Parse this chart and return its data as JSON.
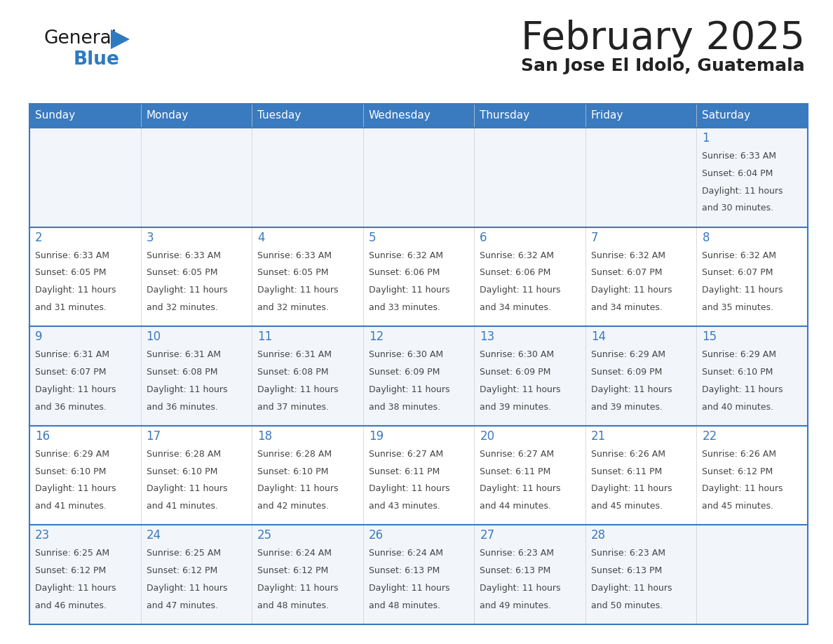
{
  "title": "February 2025",
  "subtitle": "San Jose El Idolo, Guatemala",
  "days_of_week": [
    "Sunday",
    "Monday",
    "Tuesday",
    "Wednesday",
    "Thursday",
    "Friday",
    "Saturday"
  ],
  "header_bg_color": "#3a7abf",
  "header_text_color": "#ffffff",
  "cell_bg_even": "#f2f6fb",
  "cell_bg_odd": "#ffffff",
  "day_num_color": "#3a7abf",
  "info_text_color": "#444444",
  "border_color": "#3a7abf",
  "title_color": "#222222",
  "subtitle_color": "#222222",
  "logo_general_color": "#1a1a1a",
  "logo_blue_color": "#2e7abf",
  "logo_triangle_color": "#2e7abf",
  "calendar": [
    [
      null,
      null,
      null,
      null,
      null,
      null,
      1
    ],
    [
      2,
      3,
      4,
      5,
      6,
      7,
      8
    ],
    [
      9,
      10,
      11,
      12,
      13,
      14,
      15
    ],
    [
      16,
      17,
      18,
      19,
      20,
      21,
      22
    ],
    [
      23,
      24,
      25,
      26,
      27,
      28,
      null
    ]
  ],
  "day_data": {
    "1": {
      "sunrise": "6:33 AM",
      "sunset": "6:04 PM",
      "daylight": "11 hours and 30 minutes"
    },
    "2": {
      "sunrise": "6:33 AM",
      "sunset": "6:05 PM",
      "daylight": "11 hours and 31 minutes"
    },
    "3": {
      "sunrise": "6:33 AM",
      "sunset": "6:05 PM",
      "daylight": "11 hours and 32 minutes"
    },
    "4": {
      "sunrise": "6:33 AM",
      "sunset": "6:05 PM",
      "daylight": "11 hours and 32 minutes"
    },
    "5": {
      "sunrise": "6:32 AM",
      "sunset": "6:06 PM",
      "daylight": "11 hours and 33 minutes"
    },
    "6": {
      "sunrise": "6:32 AM",
      "sunset": "6:06 PM",
      "daylight": "11 hours and 34 minutes"
    },
    "7": {
      "sunrise": "6:32 AM",
      "sunset": "6:07 PM",
      "daylight": "11 hours and 34 minutes"
    },
    "8": {
      "sunrise": "6:32 AM",
      "sunset": "6:07 PM",
      "daylight": "11 hours and 35 minutes"
    },
    "9": {
      "sunrise": "6:31 AM",
      "sunset": "6:07 PM",
      "daylight": "11 hours and 36 minutes"
    },
    "10": {
      "sunrise": "6:31 AM",
      "sunset": "6:08 PM",
      "daylight": "11 hours and 36 minutes"
    },
    "11": {
      "sunrise": "6:31 AM",
      "sunset": "6:08 PM",
      "daylight": "11 hours and 37 minutes"
    },
    "12": {
      "sunrise": "6:30 AM",
      "sunset": "6:09 PM",
      "daylight": "11 hours and 38 minutes"
    },
    "13": {
      "sunrise": "6:30 AM",
      "sunset": "6:09 PM",
      "daylight": "11 hours and 39 minutes"
    },
    "14": {
      "sunrise": "6:29 AM",
      "sunset": "6:09 PM",
      "daylight": "11 hours and 39 minutes"
    },
    "15": {
      "sunrise": "6:29 AM",
      "sunset": "6:10 PM",
      "daylight": "11 hours and 40 minutes"
    },
    "16": {
      "sunrise": "6:29 AM",
      "sunset": "6:10 PM",
      "daylight": "11 hours and 41 minutes"
    },
    "17": {
      "sunrise": "6:28 AM",
      "sunset": "6:10 PM",
      "daylight": "11 hours and 41 minutes"
    },
    "18": {
      "sunrise": "6:28 AM",
      "sunset": "6:10 PM",
      "daylight": "11 hours and 42 minutes"
    },
    "19": {
      "sunrise": "6:27 AM",
      "sunset": "6:11 PM",
      "daylight": "11 hours and 43 minutes"
    },
    "20": {
      "sunrise": "6:27 AM",
      "sunset": "6:11 PM",
      "daylight": "11 hours and 44 minutes"
    },
    "21": {
      "sunrise": "6:26 AM",
      "sunset": "6:11 PM",
      "daylight": "11 hours and 45 minutes"
    },
    "22": {
      "sunrise": "6:26 AM",
      "sunset": "6:12 PM",
      "daylight": "11 hours and 45 minutes"
    },
    "23": {
      "sunrise": "6:25 AM",
      "sunset": "6:12 PM",
      "daylight": "11 hours and 46 minutes"
    },
    "24": {
      "sunrise": "6:25 AM",
      "sunset": "6:12 PM",
      "daylight": "11 hours and 47 minutes"
    },
    "25": {
      "sunrise": "6:24 AM",
      "sunset": "6:12 PM",
      "daylight": "11 hours and 48 minutes"
    },
    "26": {
      "sunrise": "6:24 AM",
      "sunset": "6:13 PM",
      "daylight": "11 hours and 48 minutes"
    },
    "27": {
      "sunrise": "6:23 AM",
      "sunset": "6:13 PM",
      "daylight": "11 hours and 49 minutes"
    },
    "28": {
      "sunrise": "6:23 AM",
      "sunset": "6:13 PM",
      "daylight": "11 hours and 50 minutes"
    }
  }
}
